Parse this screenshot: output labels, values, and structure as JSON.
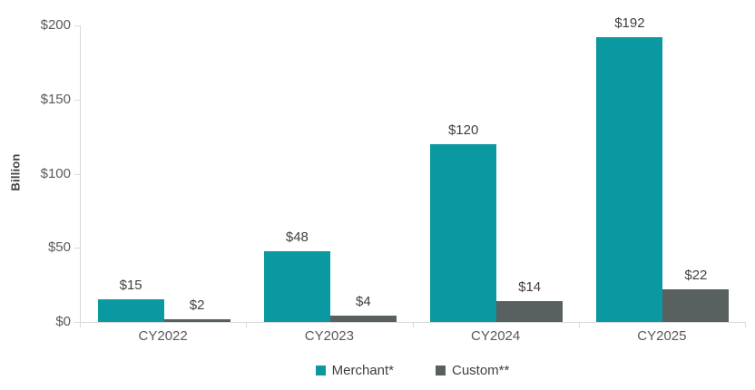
{
  "chart_data": {
    "type": "bar",
    "title": "",
    "xlabel": "",
    "ylabel": "Billion",
    "categories": [
      "CY2022",
      "CY2023",
      "CY2024",
      "CY2025"
    ],
    "series": [
      {
        "name": "Merchant*",
        "color": "#0A98A1",
        "values": [
          15,
          48,
          120,
          192
        ],
        "labels": [
          "$15",
          "$48",
          "$120",
          "$192"
        ]
      },
      {
        "name": "Custom**",
        "color": "#586060",
        "values": [
          2,
          4,
          14,
          22
        ],
        "labels": [
          "$2",
          "$4",
          "$14",
          "$22"
        ]
      }
    ],
    "ylim": [
      0,
      200
    ],
    "yticks": [
      {
        "value": 0,
        "label": "$0"
      },
      {
        "value": 50,
        "label": "$50"
      },
      {
        "value": 100,
        "label": "$100"
      },
      {
        "value": 150,
        "label": "$150"
      },
      {
        "value": 200,
        "label": "$200"
      }
    ],
    "grid": false,
    "legend_position": "bottom"
  },
  "colors": {
    "axis_line": "#D9D9D9",
    "tick_text": "#595959",
    "value_text": "#404040",
    "background": "#FFFFFF",
    "merchant": "#0A98A1",
    "custom": "#586060"
  }
}
